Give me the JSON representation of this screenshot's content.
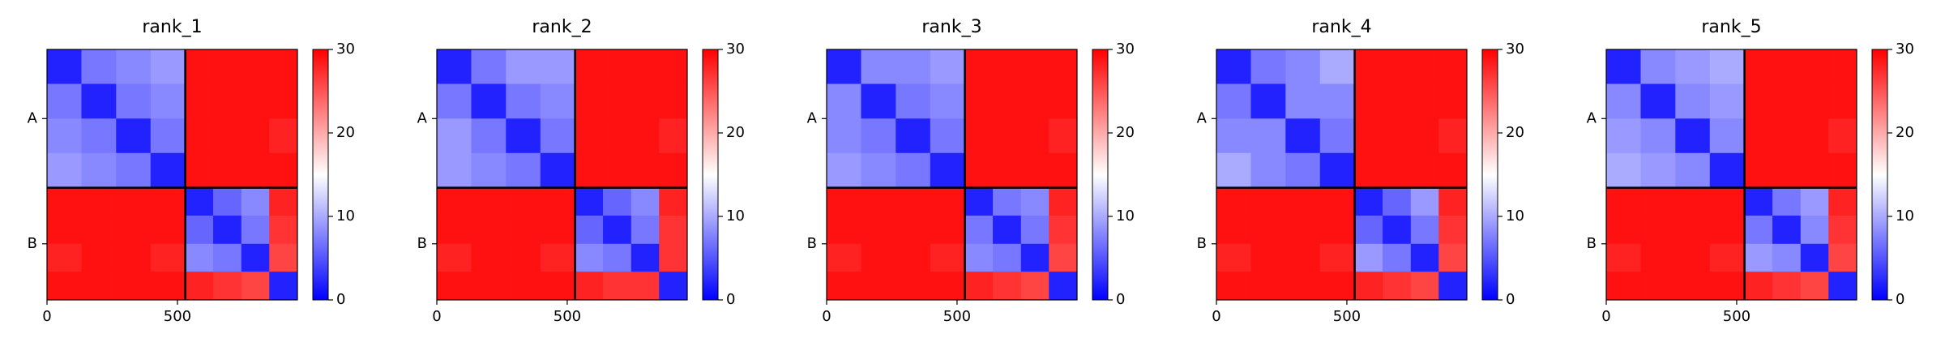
{
  "chart_data": [
    {
      "type": "heatmap",
      "title": "rank_1",
      "bins": [
        0,
        132,
        265,
        397,
        530,
        637,
        745,
        852,
        960
      ],
      "z": [
        [
          2,
          7,
          8,
          9,
          29,
          29,
          29,
          29
        ],
        [
          7,
          2,
          7,
          8,
          29,
          29,
          29,
          29
        ],
        [
          8,
          7,
          2,
          7,
          29,
          29,
          29,
          28
        ],
        [
          9,
          8,
          7,
          2,
          29,
          29,
          29,
          29
        ],
        [
          29,
          29,
          29,
          29,
          2,
          6,
          8,
          28
        ],
        [
          29,
          29,
          29,
          29,
          6,
          2,
          7,
          27
        ],
        [
          28,
          29,
          29,
          28,
          8,
          7,
          2,
          26
        ],
        [
          29,
          29,
          29,
          29,
          28,
          27,
          26,
          2
        ]
      ],
      "xlim": [
        0,
        960
      ],
      "ylim": [
        960,
        0
      ],
      "xticks": [
        0,
        500
      ],
      "yticks": [
        {
          "value": 265,
          "label": "A"
        },
        {
          "value": 745,
          "label": "B"
        }
      ],
      "chain_breaks": [
        530
      ],
      "colormap": "bwr",
      "clim": [
        0,
        30
      ],
      "cticks": [
        0,
        10,
        20,
        30
      ]
    },
    {
      "type": "heatmap",
      "title": "rank_2",
      "bins": [
        0,
        132,
        265,
        397,
        530,
        637,
        745,
        852,
        960
      ],
      "z": [
        [
          2,
          7,
          9,
          9,
          29,
          29,
          29,
          29
        ],
        [
          7,
          2,
          7,
          8,
          29,
          29,
          29,
          29
        ],
        [
          9,
          7,
          2,
          7,
          29,
          29,
          29,
          28
        ],
        [
          9,
          8,
          7,
          2,
          29,
          29,
          29,
          29
        ],
        [
          29,
          29,
          29,
          29,
          2,
          6,
          8,
          28
        ],
        [
          29,
          29,
          29,
          29,
          6,
          2,
          7,
          27
        ],
        [
          28,
          29,
          29,
          28,
          8,
          7,
          2,
          27
        ],
        [
          29,
          29,
          29,
          29,
          28,
          27,
          27,
          2
        ]
      ],
      "xlim": [
        0,
        960
      ],
      "ylim": [
        960,
        0
      ],
      "xticks": [
        0,
        500
      ],
      "yticks": [
        {
          "value": 265,
          "label": "A"
        },
        {
          "value": 745,
          "label": "B"
        }
      ],
      "chain_breaks": [
        530
      ],
      "colormap": "bwr",
      "clim": [
        0,
        30
      ],
      "cticks": [
        0,
        10,
        20,
        30
      ]
    },
    {
      "type": "heatmap",
      "title": "rank_3",
      "bins": [
        0,
        132,
        265,
        397,
        530,
        637,
        745,
        852,
        960
      ],
      "z": [
        [
          2,
          8,
          8,
          9,
          29,
          29,
          29,
          29
        ],
        [
          8,
          2,
          7,
          8,
          29,
          29,
          29,
          29
        ],
        [
          8,
          7,
          2,
          7,
          29,
          29,
          29,
          28
        ],
        [
          9,
          8,
          7,
          2,
          29,
          29,
          29,
          29
        ],
        [
          29,
          29,
          29,
          29,
          2,
          7,
          8,
          28
        ],
        [
          29,
          29,
          29,
          29,
          7,
          2,
          7,
          27
        ],
        [
          28,
          29,
          29,
          28,
          8,
          7,
          2,
          26
        ],
        [
          29,
          29,
          29,
          29,
          28,
          27,
          26,
          2
        ]
      ],
      "xlim": [
        0,
        960
      ],
      "ylim": [
        960,
        0
      ],
      "xticks": [
        0,
        500
      ],
      "yticks": [
        {
          "value": 265,
          "label": "A"
        },
        {
          "value": 745,
          "label": "B"
        }
      ],
      "chain_breaks": [
        530
      ],
      "colormap": "bwr",
      "clim": [
        0,
        30
      ],
      "cticks": [
        0,
        10,
        20,
        30
      ]
    },
    {
      "type": "heatmap",
      "title": "rank_4",
      "bins": [
        0,
        132,
        265,
        397,
        530,
        637,
        745,
        852,
        960
      ],
      "z": [
        [
          2,
          7,
          8,
          10,
          29,
          29,
          29,
          29
        ],
        [
          7,
          2,
          8,
          8,
          29,
          29,
          29,
          29
        ],
        [
          8,
          8,
          2,
          7,
          29,
          29,
          29,
          28
        ],
        [
          10,
          8,
          7,
          2,
          29,
          29,
          29,
          29
        ],
        [
          29,
          29,
          29,
          29,
          2,
          6,
          9,
          28
        ],
        [
          29,
          29,
          29,
          29,
          6,
          2,
          7,
          27
        ],
        [
          28,
          29,
          29,
          28,
          9,
          7,
          2,
          26
        ],
        [
          29,
          29,
          29,
          29,
          28,
          27,
          26,
          2
        ]
      ],
      "xlim": [
        0,
        960
      ],
      "ylim": [
        960,
        0
      ],
      "xticks": [
        0,
        500
      ],
      "yticks": [
        {
          "value": 265,
          "label": "A"
        },
        {
          "value": 745,
          "label": "B"
        }
      ],
      "chain_breaks": [
        530
      ],
      "colormap": "bwr",
      "clim": [
        0,
        30
      ],
      "cticks": [
        0,
        10,
        20,
        30
      ]
    },
    {
      "type": "heatmap",
      "title": "rank_5",
      "bins": [
        0,
        132,
        265,
        397,
        530,
        637,
        745,
        852,
        960
      ],
      "z": [
        [
          2,
          8,
          9,
          10,
          29,
          29,
          29,
          29
        ],
        [
          8,
          2,
          8,
          9,
          29,
          29,
          29,
          29
        ],
        [
          9,
          8,
          2,
          8,
          29,
          29,
          29,
          28
        ],
        [
          10,
          9,
          8,
          2,
          29,
          29,
          29,
          29
        ],
        [
          29,
          29,
          29,
          29,
          2,
          7,
          9,
          28
        ],
        [
          29,
          29,
          29,
          29,
          7,
          2,
          8,
          27
        ],
        [
          28,
          29,
          29,
          28,
          9,
          8,
          2,
          26
        ],
        [
          29,
          29,
          29,
          29,
          28,
          27,
          26,
          2
        ]
      ],
      "xlim": [
        0,
        960
      ],
      "ylim": [
        960,
        0
      ],
      "xticks": [
        0,
        500
      ],
      "yticks": [
        {
          "value": 265,
          "label": "A"
        },
        {
          "value": 745,
          "label": "B"
        }
      ],
      "chain_breaks": [
        530
      ],
      "colormap": "bwr",
      "clim": [
        0,
        30
      ],
      "cticks": [
        0,
        10,
        20,
        30
      ]
    }
  ]
}
